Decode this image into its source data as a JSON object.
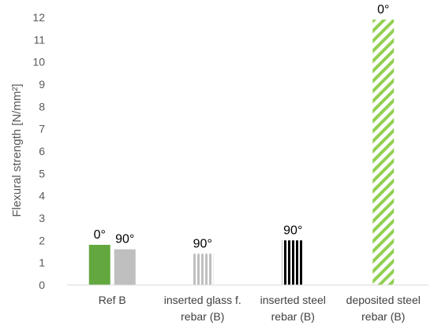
{
  "chart_data": {
    "type": "bar",
    "title": "",
    "xlabel": "",
    "ylabel": "Flexural strength [N/mm²]",
    "ylim": [
      0,
      12
    ],
    "yticks": [
      "0",
      "1",
      "2",
      "3",
      "4",
      "5",
      "6",
      "7",
      "8",
      "9",
      "10",
      "11",
      "12"
    ],
    "grid": false,
    "categories": [
      [
        "Ref B"
      ],
      [
        "inserted glass f.",
        "rebar (B)"
      ],
      [
        "inserted steel",
        "rebar (B)"
      ],
      [
        "deposited steel",
        "rebar (B)"
      ]
    ],
    "bars": [
      {
        "category": 0,
        "label": "0°",
        "value": 1.8,
        "color": "#62a83f",
        "pattern": "solid"
      },
      {
        "category": 0,
        "label": "90°",
        "value": 1.6,
        "color": "#bfbfbf",
        "pattern": "solid"
      },
      {
        "category": 1,
        "label": "90°",
        "value": 1.4,
        "color": "#bfbfbf",
        "pattern": "vertical-stripes"
      },
      {
        "category": 2,
        "label": "90°",
        "value": 2.0,
        "color": "#000000",
        "pattern": "vertical-stripes"
      },
      {
        "category": 3,
        "label": "0°",
        "value": 11.9,
        "color": "#92d050",
        "pattern": "diagonal-stripes"
      }
    ]
  }
}
